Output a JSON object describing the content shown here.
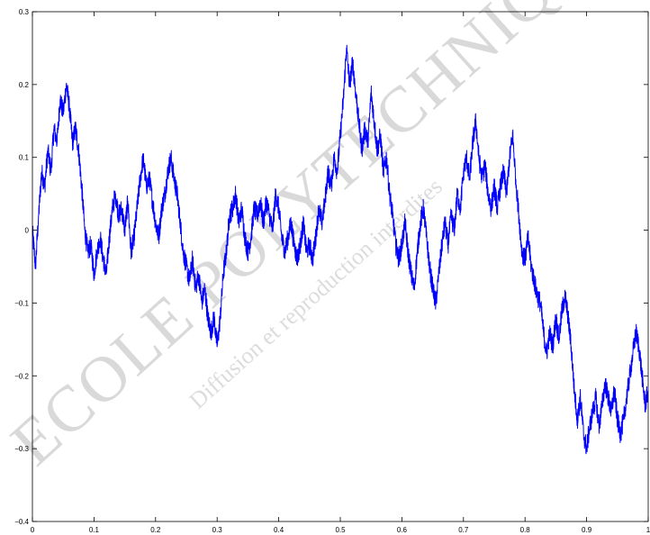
{
  "watermark": {
    "primary": "ECOLE POLYTECHNIQUE",
    "secondary": "Diffusion et reproduction interdites",
    "color": "#d9d9d9"
  },
  "chart_data": {
    "type": "line",
    "title": "",
    "xlabel": "",
    "ylabel": "",
    "xlim": [
      0,
      1
    ],
    "ylim": [
      -0.4,
      0.3
    ],
    "x_ticks": [
      "0",
      "0.1",
      "0.2",
      "0.3",
      "0.4",
      "0.5",
      "0.6",
      "0.7",
      "0.8",
      "0.9",
      "1"
    ],
    "y_ticks": [
      "−0.4",
      "−0.3",
      "−0.2",
      "−0.1",
      "0",
      "0.1",
      "0.2",
      "0.3"
    ],
    "grid": false,
    "line_color": "#0000ff",
    "series": [
      {
        "points": [
          [
            0.0,
            0.0
          ],
          [
            0.005,
            -0.05
          ],
          [
            0.01,
            0.02
          ],
          [
            0.015,
            0.08
          ],
          [
            0.02,
            0.06
          ],
          [
            0.025,
            0.11
          ],
          [
            0.03,
            0.08
          ],
          [
            0.035,
            0.14
          ],
          [
            0.04,
            0.12
          ],
          [
            0.045,
            0.18
          ],
          [
            0.05,
            0.16
          ],
          [
            0.055,
            0.2
          ],
          [
            0.06,
            0.17
          ],
          [
            0.065,
            0.12
          ],
          [
            0.07,
            0.14
          ],
          [
            0.075,
            0.11
          ],
          [
            0.08,
            0.06
          ],
          [
            0.085,
            0.0
          ],
          [
            0.09,
            -0.03
          ],
          [
            0.095,
            -0.02
          ],
          [
            0.1,
            -0.06
          ],
          [
            0.105,
            -0.03
          ],
          [
            0.11,
            -0.01
          ],
          [
            0.115,
            -0.04
          ],
          [
            0.12,
            -0.06
          ],
          [
            0.125,
            -0.01
          ],
          [
            0.13,
            0.03
          ],
          [
            0.135,
            0.05
          ],
          [
            0.14,
            0.02
          ],
          [
            0.145,
            0.03
          ],
          [
            0.15,
            0.0
          ],
          [
            0.155,
            0.04
          ],
          [
            0.16,
            -0.03
          ],
          [
            0.165,
            -0.01
          ],
          [
            0.17,
            0.03
          ],
          [
            0.175,
            0.07
          ],
          [
            0.18,
            0.1
          ],
          [
            0.185,
            0.06
          ],
          [
            0.19,
            0.07
          ],
          [
            0.195,
            0.04
          ],
          [
            0.2,
            0.01
          ],
          [
            0.205,
            -0.01
          ],
          [
            0.21,
            0.03
          ],
          [
            0.215,
            0.05
          ],
          [
            0.22,
            0.08
          ],
          [
            0.225,
            0.1
          ],
          [
            0.23,
            0.07
          ],
          [
            0.235,
            0.05
          ],
          [
            0.24,
            0.01
          ],
          [
            0.245,
            -0.03
          ],
          [
            0.25,
            -0.05
          ],
          [
            0.255,
            -0.07
          ],
          [
            0.26,
            -0.04
          ],
          [
            0.265,
            -0.08
          ],
          [
            0.27,
            -0.06
          ],
          [
            0.275,
            -0.1
          ],
          [
            0.28,
            -0.08
          ],
          [
            0.285,
            -0.12
          ],
          [
            0.29,
            -0.14
          ],
          [
            0.295,
            -0.12
          ],
          [
            0.3,
            -0.16
          ],
          [
            0.305,
            -0.12
          ],
          [
            0.31,
            -0.06
          ],
          [
            0.315,
            -0.03
          ],
          [
            0.32,
            0.02
          ],
          [
            0.325,
            0.03
          ],
          [
            0.33,
            0.05
          ],
          [
            0.335,
            0.01
          ],
          [
            0.34,
            0.03
          ],
          [
            0.345,
            -0.01
          ],
          [
            0.35,
            -0.03
          ],
          [
            0.355,
            -0.01
          ],
          [
            0.36,
            0.03
          ],
          [
            0.365,
            0.02
          ],
          [
            0.37,
            0.04
          ],
          [
            0.375,
            0.01
          ],
          [
            0.38,
            0.04
          ],
          [
            0.385,
            0.02
          ],
          [
            0.39,
            0.0
          ],
          [
            0.395,
            0.05
          ],
          [
            0.4,
            0.03
          ],
          [
            0.405,
            -0.01
          ],
          [
            0.41,
            -0.03
          ],
          [
            0.415,
            -0.01
          ],
          [
            0.42,
            0.01
          ],
          [
            0.425,
            -0.02
          ],
          [
            0.43,
            -0.04
          ],
          [
            0.435,
            -0.02
          ],
          [
            0.44,
            0.01
          ],
          [
            0.445,
            -0.03
          ],
          [
            0.45,
            -0.02
          ],
          [
            0.455,
            -0.04
          ],
          [
            0.46,
            -0.01
          ],
          [
            0.465,
            0.03
          ],
          [
            0.47,
            0.01
          ],
          [
            0.475,
            0.04
          ],
          [
            0.48,
            0.08
          ],
          [
            0.485,
            0.06
          ],
          [
            0.49,
            0.1
          ],
          [
            0.495,
            0.08
          ],
          [
            0.5,
            0.13
          ],
          [
            0.505,
            0.18
          ],
          [
            0.51,
            0.25
          ],
          [
            0.515,
            0.2
          ],
          [
            0.52,
            0.23
          ],
          [
            0.525,
            0.19
          ],
          [
            0.53,
            0.15
          ],
          [
            0.535,
            0.11
          ],
          [
            0.54,
            0.14
          ],
          [
            0.545,
            0.12
          ],
          [
            0.55,
            0.19
          ],
          [
            0.555,
            0.15
          ],
          [
            0.56,
            0.11
          ],
          [
            0.565,
            0.13
          ],
          [
            0.57,
            0.08
          ],
          [
            0.575,
            0.1
          ],
          [
            0.58,
            0.05
          ],
          [
            0.585,
            0.02
          ],
          [
            0.59,
            -0.02
          ],
          [
            0.595,
            -0.04
          ],
          [
            0.6,
            -0.02
          ],
          [
            0.605,
            0.01
          ],
          [
            0.61,
            -0.03
          ],
          [
            0.615,
            -0.06
          ],
          [
            0.62,
            -0.08
          ],
          [
            0.625,
            -0.03
          ],
          [
            0.63,
            0.01
          ],
          [
            0.635,
            0.03
          ],
          [
            0.64,
            -0.01
          ],
          [
            0.645,
            -0.05
          ],
          [
            0.65,
            -0.08
          ],
          [
            0.655,
            -0.1
          ],
          [
            0.66,
            -0.06
          ],
          [
            0.665,
            -0.02
          ],
          [
            0.67,
            0.01
          ],
          [
            0.675,
            -0.02
          ],
          [
            0.68,
            0.02
          ],
          [
            0.685,
            0.0
          ],
          [
            0.69,
            0.05
          ],
          [
            0.695,
            0.03
          ],
          [
            0.7,
            0.08
          ],
          [
            0.705,
            0.1
          ],
          [
            0.71,
            0.07
          ],
          [
            0.715,
            0.12
          ],
          [
            0.72,
            0.15
          ],
          [
            0.725,
            0.1
          ],
          [
            0.73,
            0.07
          ],
          [
            0.735,
            0.09
          ],
          [
            0.74,
            0.05
          ],
          [
            0.745,
            0.03
          ],
          [
            0.75,
            0.06
          ],
          [
            0.755,
            0.03
          ],
          [
            0.76,
            0.06
          ],
          [
            0.765,
            0.08
          ],
          [
            0.77,
            0.05
          ],
          [
            0.775,
            0.1
          ],
          [
            0.78,
            0.13
          ],
          [
            0.785,
            0.07
          ],
          [
            0.79,
            0.02
          ],
          [
            0.795,
            -0.03
          ],
          [
            0.8,
            -0.04
          ],
          [
            0.805,
            -0.01
          ],
          [
            0.81,
            -0.05
          ],
          [
            0.815,
            -0.07
          ],
          [
            0.82,
            -0.09
          ],
          [
            0.825,
            -0.1
          ],
          [
            0.83,
            -0.14
          ],
          [
            0.835,
            -0.17
          ],
          [
            0.84,
            -0.14
          ],
          [
            0.845,
            -0.16
          ],
          [
            0.85,
            -0.12
          ],
          [
            0.855,
            -0.15
          ],
          [
            0.86,
            -0.11
          ],
          [
            0.865,
            -0.09
          ],
          [
            0.87,
            -0.12
          ],
          [
            0.875,
            -0.16
          ],
          [
            0.88,
            -0.22
          ],
          [
            0.885,
            -0.26
          ],
          [
            0.89,
            -0.23
          ],
          [
            0.895,
            -0.28
          ],
          [
            0.9,
            -0.3
          ],
          [
            0.905,
            -0.27
          ],
          [
            0.91,
            -0.25
          ],
          [
            0.915,
            -0.23
          ],
          [
            0.92,
            -0.27
          ],
          [
            0.925,
            -0.24
          ],
          [
            0.93,
            -0.21
          ],
          [
            0.935,
            -0.23
          ],
          [
            0.94,
            -0.25
          ],
          [
            0.945,
            -0.22
          ],
          [
            0.95,
            -0.26
          ],
          [
            0.955,
            -0.28
          ],
          [
            0.96,
            -0.26
          ],
          [
            0.965,
            -0.23
          ],
          [
            0.97,
            -0.2
          ],
          [
            0.975,
            -0.17
          ],
          [
            0.98,
            -0.14
          ],
          [
            0.985,
            -0.16
          ],
          [
            0.99,
            -0.2
          ],
          [
            0.995,
            -0.24
          ],
          [
            1.0,
            -0.22
          ]
        ]
      }
    ]
  }
}
